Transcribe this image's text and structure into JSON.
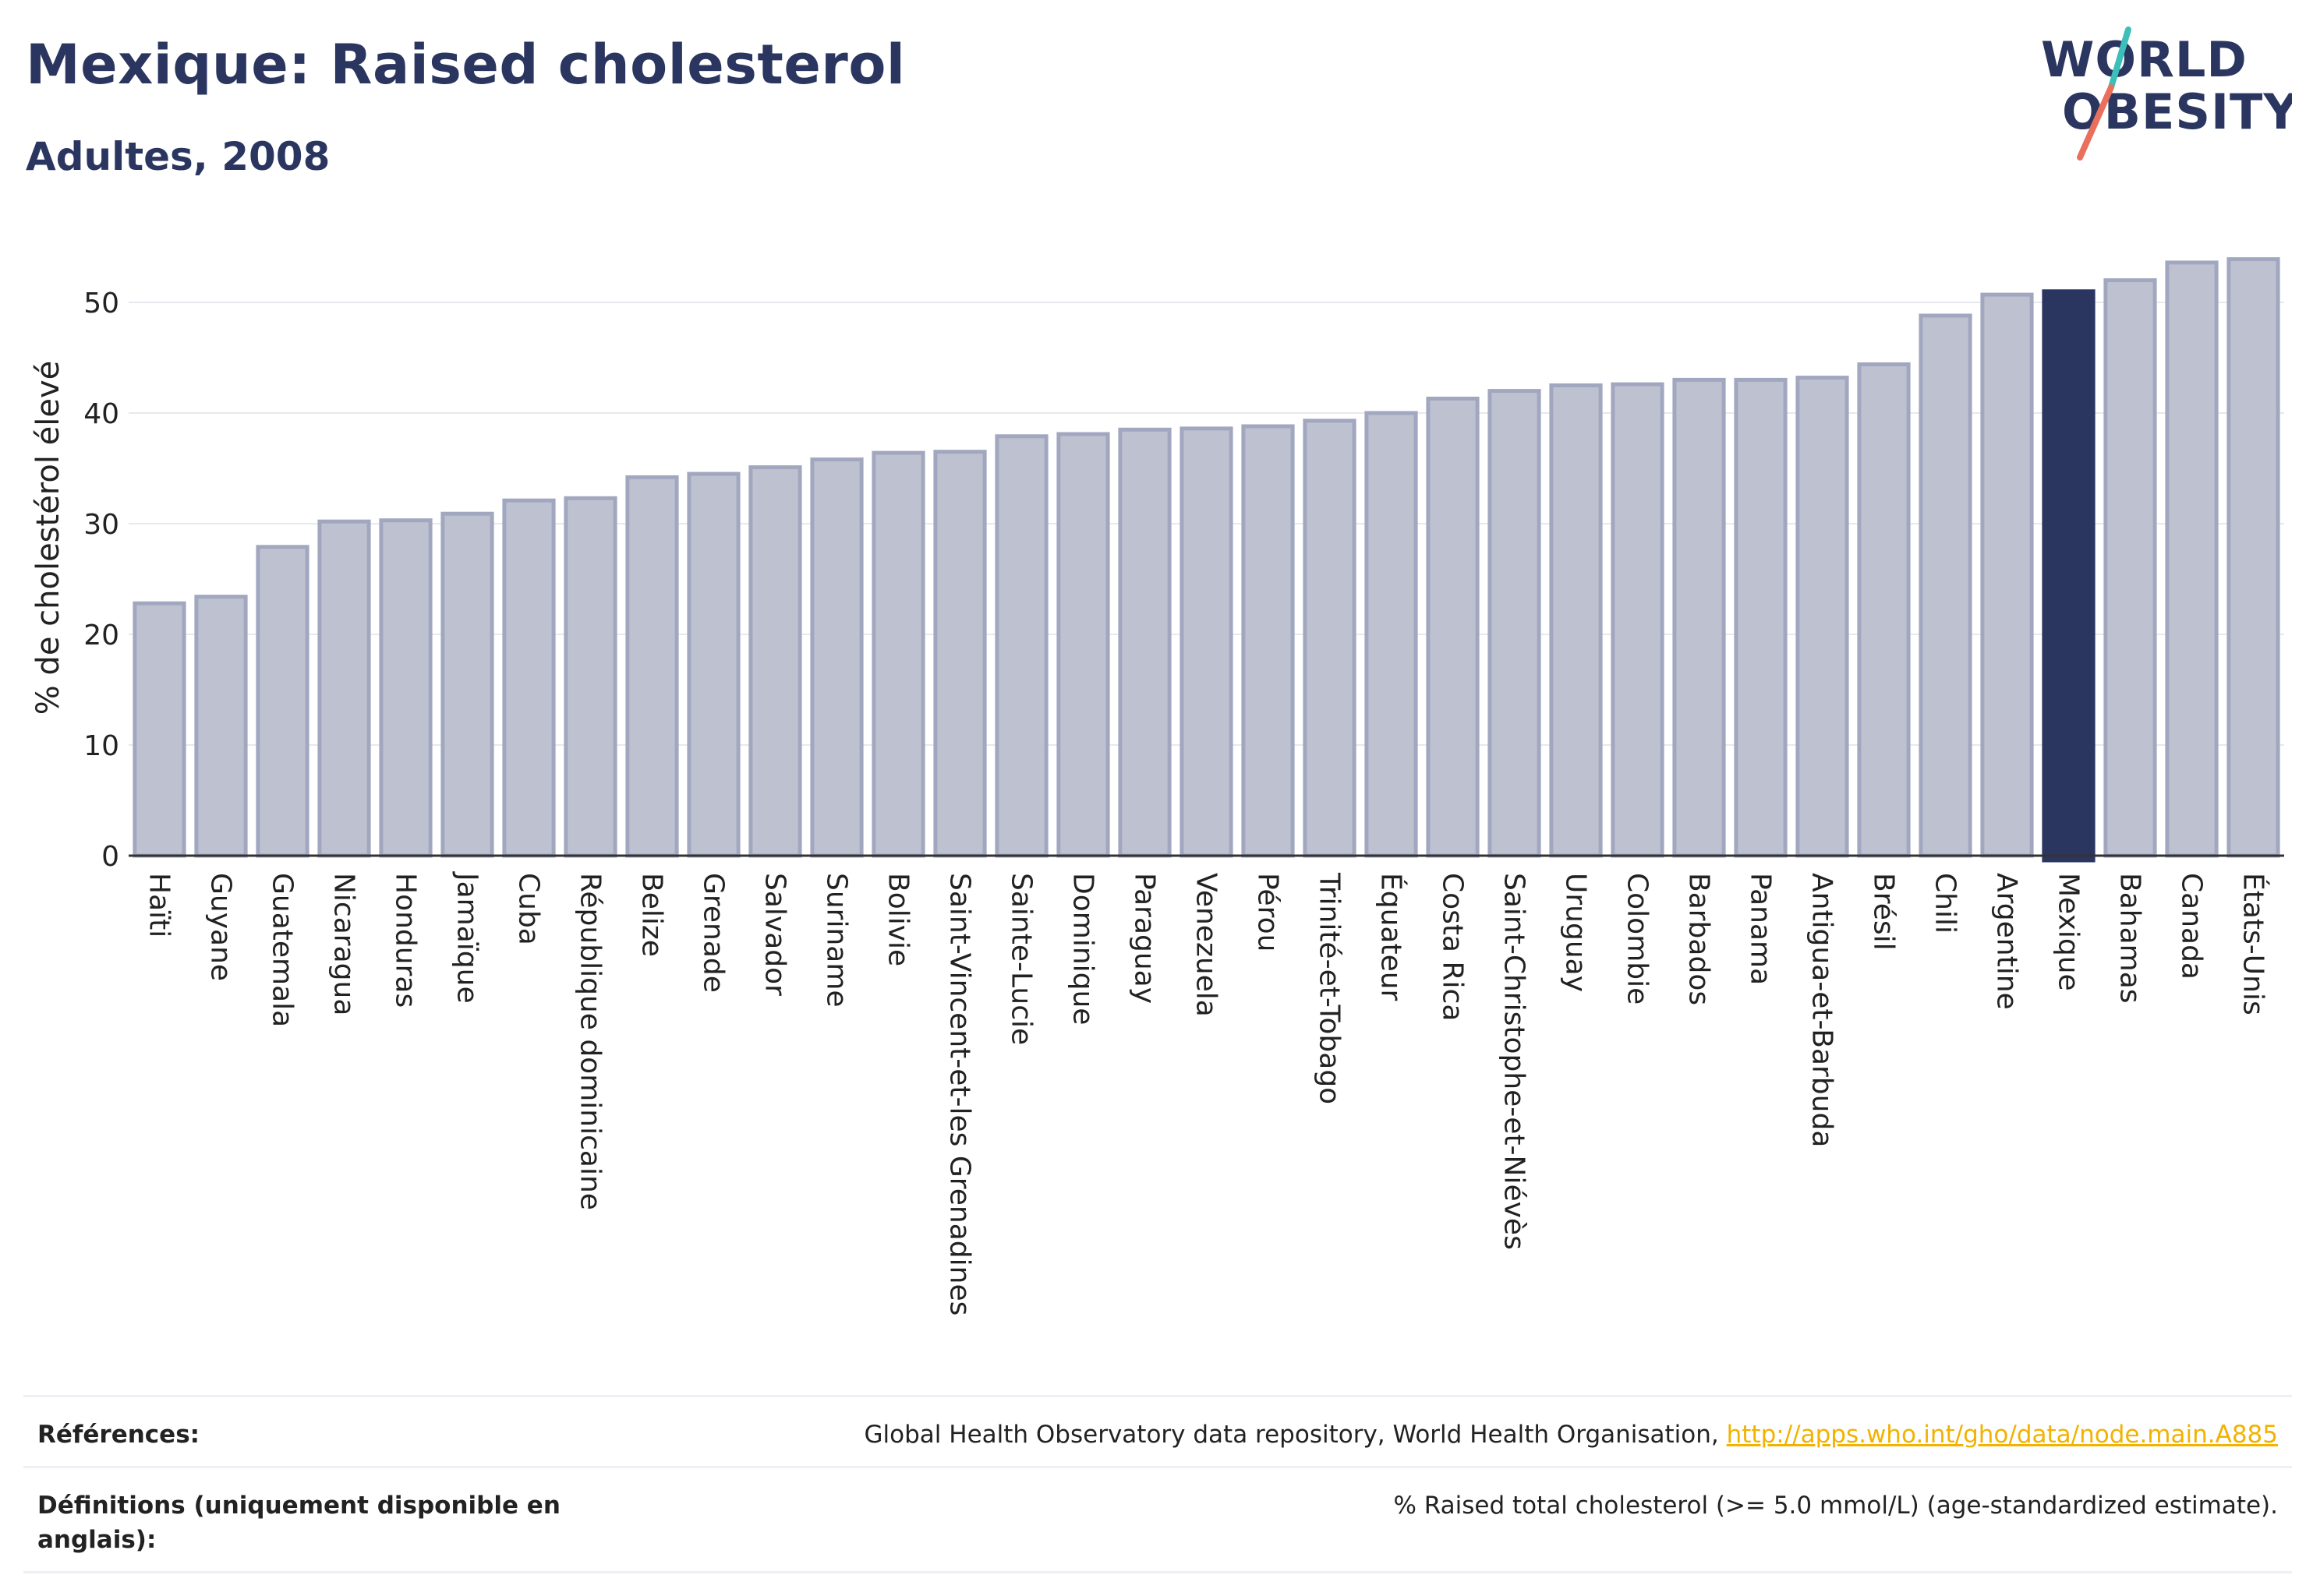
{
  "header": {
    "title": "Mexique: Raised cholesterol",
    "subtitle": "Adultes, 2008"
  },
  "logo": {
    "line1": "WORLD",
    "line2": "OBESITY",
    "colors": {
      "text": "#2b3660",
      "slash_teal": "#3bbfb8",
      "slash_coral": "#e8705c"
    }
  },
  "colors": {
    "bar": "#bec2d0",
    "bar_edge": "#a2a7c0",
    "highlight": "#2b3660",
    "grid": "#e8e9ee",
    "axis": "#333333"
  },
  "chart_data": {
    "type": "bar",
    "ylabel": "% de cholestérol élevé",
    "ylim": [
      0,
      55
    ],
    "yticks": [
      0,
      10,
      20,
      30,
      40,
      50
    ],
    "grid": true,
    "highlight": "Mexique",
    "categories": [
      "Haïti",
      "Guyane",
      "Guatemala",
      "Nicaragua",
      "Honduras",
      "Jamaïque",
      "Cuba",
      "République dominicaine",
      "Belize",
      "Grenade",
      "Salvador",
      "Suriname",
      "Bolivie",
      "Saint-Vincent-et-les Grenadines",
      "Sainte-Lucie",
      "Dominique",
      "Paraguay",
      "Venezuela",
      "Pérou",
      "Trinité-et-Tobago",
      "Équateur",
      "Costa Rica",
      "Saint-Christophe-et-Niévès",
      "Uruguay",
      "Colombie",
      "Barbados",
      "Panama",
      "Antigua-et-Barbuda",
      "Brésil",
      "Chili",
      "Argentine",
      "Mexique",
      "Bahamas",
      "Canada",
      "États-Unis"
    ],
    "values": [
      22.8,
      23.4,
      27.9,
      30.2,
      30.3,
      30.9,
      32.1,
      32.3,
      34.2,
      34.5,
      35.1,
      35.8,
      36.4,
      36.5,
      37.9,
      38.1,
      38.5,
      38.6,
      38.8,
      39.3,
      40.0,
      41.3,
      42.0,
      42.5,
      42.6,
      43.0,
      43.0,
      43.2,
      44.4,
      48.8,
      50.7,
      51.0,
      52.0,
      53.6,
      53.9
    ]
  },
  "footer": {
    "references_label": "Références:",
    "references_text": "Global Health Observatory data repository, World Health Organisation, ",
    "references_link": "http://apps.who.int/gho/data/node.main.A885",
    "definitions_label": "Définitions (uniquement disponible en anglais):",
    "definitions_text": "% Raised total cholesterol (>= 5.0 mmol/L) (age-standardized estimate)."
  }
}
